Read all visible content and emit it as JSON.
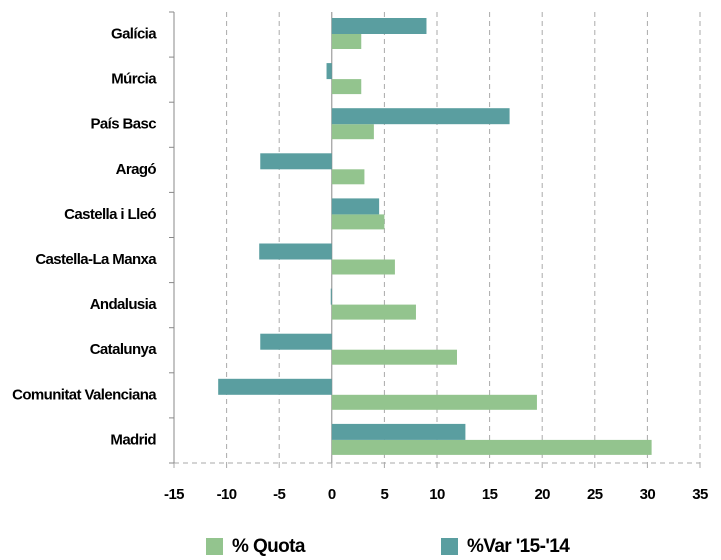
{
  "chart_data": {
    "type": "hbar",
    "categories": [
      "Galícia",
      "Múrcia",
      "País Basc",
      "Aragó",
      "Castella i Lleó",
      "Castella-La Manxa",
      "Andalusia",
      "Catalunya",
      "Comunitat Valenciana",
      "Madrid"
    ],
    "series": [
      {
        "name": "% Quota",
        "color": "#93c48e",
        "values": [
          2.8,
          2.8,
          4.0,
          3.1,
          5.0,
          6.0,
          8.0,
          11.9,
          19.5,
          30.4
        ]
      },
      {
        "name": "%Var '15-'14",
        "color": "#5a9ea0",
        "values": [
          9.0,
          -0.5,
          16.9,
          -6.8,
          4.5,
          -6.9,
          -0.1,
          -6.8,
          -10.8,
          12.7
        ]
      }
    ],
    "xlim": [
      -15,
      35
    ],
    "xticks": [
      -15,
      -10,
      -5,
      0,
      5,
      10,
      15,
      20,
      25,
      30,
      35
    ],
    "grid": true,
    "legend": "bottom"
  }
}
